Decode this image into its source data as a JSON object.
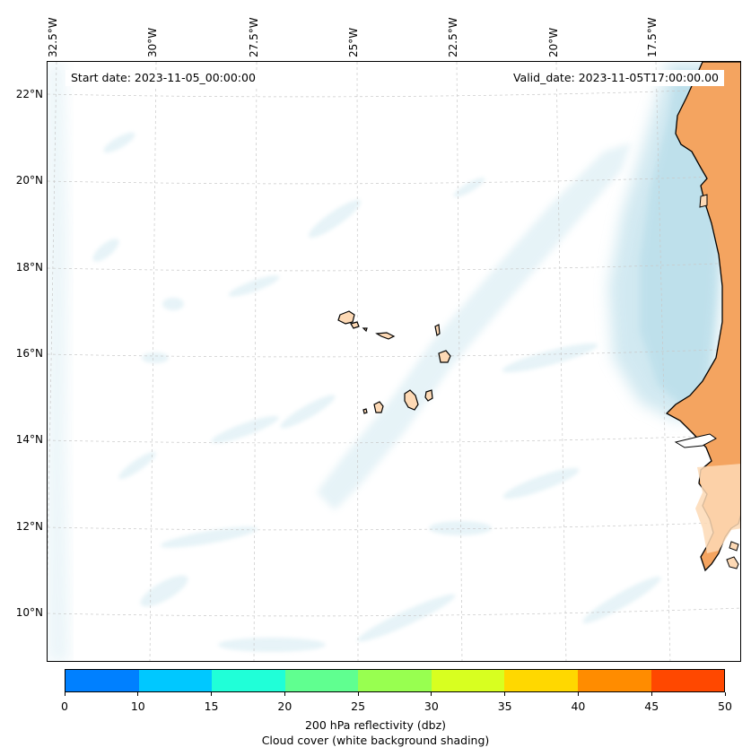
{
  "map": {
    "start_date": "Start date: 2023-11-05_00:00:00",
    "valid_date": "Valid_date: 2023-11-05T17:00:00.00",
    "longitude_labels": [
      "32.5°W",
      "30°W",
      "27.5°W",
      "25°W",
      "22.5°W",
      "20°W",
      "17.5°W"
    ],
    "latitude_labels": [
      "22°N",
      "20°N",
      "18°N",
      "16°N",
      "14°N",
      "12°N",
      "10°N"
    ],
    "colors": {
      "land": "#f4a460",
      "land_light": "#fdd9b5",
      "cloud": "#add8e6",
      "coast": "#000000",
      "grid": "#c8c8c8"
    }
  },
  "colorbar": {
    "ticks": [
      "0",
      "10",
      "15",
      "20",
      "25",
      "30",
      "35",
      "40",
      "45",
      "50"
    ],
    "colors": [
      "#0080ff",
      "#00c8ff",
      "#20ffd8",
      "#60ff90",
      "#98ff50",
      "#d8ff20",
      "#ffd800",
      "#ff8c00",
      "#ff4800"
    ],
    "label_line1": "200 hPa reflectivity (dbz)",
    "label_line2": "Cloud cover (white background shading)"
  }
}
